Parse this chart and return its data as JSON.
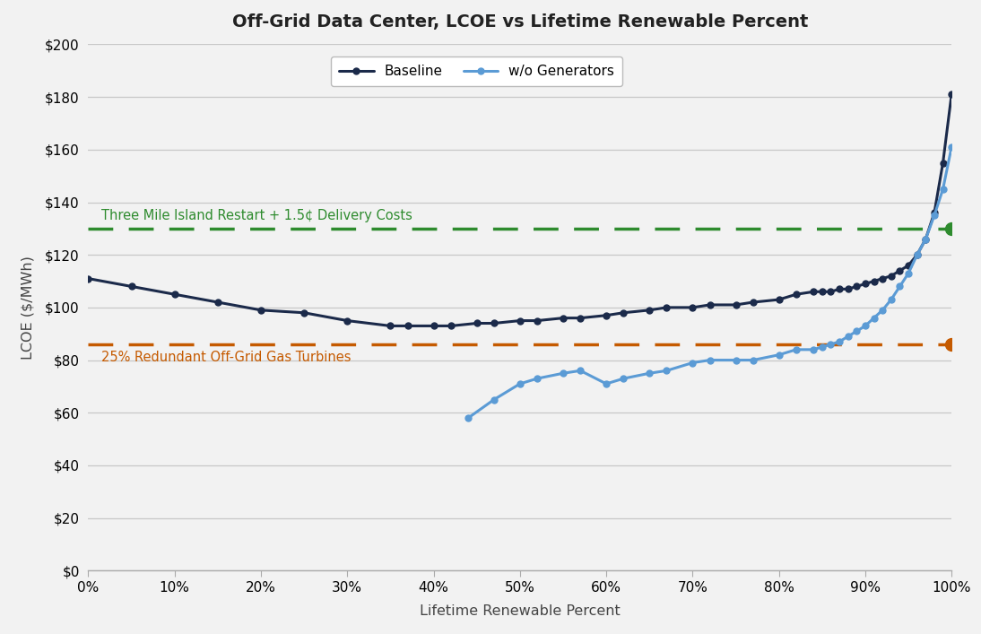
{
  "title": "Off-Grid Data Center, LCOE vs Lifetime Renewable Percent",
  "xlabel": "Lifetime Renewable Percent",
  "ylabel": "LCOE ($/MWh)",
  "background_color": "#f2f2f2",
  "plot_bg_color": "#f2f2f2",
  "grid_color": "#c8c8c8",
  "baseline_color": "#1b2a4a",
  "wo_gen_color": "#5b9bd5",
  "tmi_line_color": "#2e8b2e",
  "gas_line_color": "#c55a00",
  "tmi_value": 130,
  "gas_value": 86,
  "tmi_label": "Three Mile Island Restart + 1.5¢ Delivery Costs",
  "gas_label": "25% Redundant Off-Grid Gas Turbines",
  "baseline_label": "Baseline",
  "wo_gen_label": "w/o Generators",
  "baseline_x": [
    0,
    5,
    10,
    15,
    20,
    25,
    30,
    35,
    37,
    40,
    42,
    45,
    47,
    50,
    52,
    55,
    57,
    60,
    62,
    65,
    67,
    70,
    72,
    75,
    77,
    80,
    82,
    84,
    85,
    86,
    87,
    88,
    89,
    90,
    91,
    92,
    93,
    94,
    95,
    96,
    97,
    98,
    99,
    100
  ],
  "baseline_y": [
    111,
    108,
    105,
    102,
    99,
    98,
    95,
    93,
    93,
    93,
    93,
    94,
    94,
    95,
    95,
    96,
    96,
    97,
    98,
    99,
    100,
    100,
    101,
    101,
    102,
    103,
    105,
    106,
    106,
    106,
    107,
    107,
    108,
    109,
    110,
    111,
    112,
    114,
    116,
    120,
    126,
    136,
    155,
    181
  ],
  "wo_gen_x": [
    44,
    47,
    50,
    52,
    55,
    57,
    60,
    62,
    65,
    67,
    70,
    72,
    75,
    77,
    80,
    82,
    84,
    85,
    86,
    87,
    88,
    89,
    90,
    91,
    92,
    93,
    94,
    95,
    96,
    97,
    98,
    99,
    100
  ],
  "wo_gen_y": [
    58,
    65,
    71,
    73,
    75,
    76,
    71,
    73,
    75,
    76,
    79,
    80,
    80,
    80,
    82,
    84,
    84,
    85,
    86,
    87,
    89,
    91,
    93,
    96,
    99,
    103,
    108,
    113,
    120,
    126,
    135,
    145,
    161
  ],
  "ylim": [
    0,
    200
  ],
  "yticks": [
    0,
    20,
    40,
    60,
    80,
    100,
    120,
    140,
    160,
    180,
    200
  ],
  "xlim": [
    0,
    1.0
  ],
  "xticks": [
    0,
    0.1,
    0.2,
    0.3,
    0.4,
    0.5,
    0.6,
    0.7,
    0.8,
    0.9,
    1.0
  ]
}
